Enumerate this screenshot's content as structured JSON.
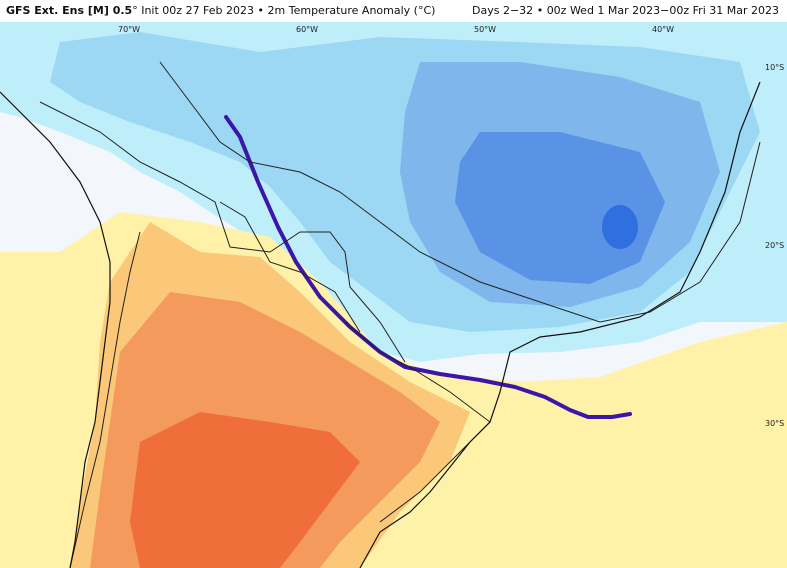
{
  "header": {
    "model": "GFS Ext. Ens [M] 0.5",
    "deg": "°",
    "init": "Init 00z 27 Feb 2023",
    "sep": "•",
    "variable": "2m Temperature Anomaly (°C)",
    "days": "Days 2−32",
    "valid": "00z Wed 1 Mar 2023−00z Fri 31 Mar 2023"
  },
  "map": {
    "lon_labels": [
      "70°W",
      "60°W",
      "50°W",
      "40°W"
    ],
    "lat_labels": [
      "10°S",
      "20°S",
      "30°S"
    ],
    "colors": {
      "ocean_neutral": "#f3f6fb",
      "cool_light": "#bfeefb",
      "cool_mid": "#9cd8f3",
      "cool_strong": "#7fb7ec",
      "cool_stronger": "#5a92e6",
      "warm_light": "#fff2a8",
      "warm_mid": "#fbc87a",
      "warm_strong": "#f39a5c",
      "warm_stronger": "#ef6e3a",
      "front_line": "#3b16a8"
    }
  }
}
